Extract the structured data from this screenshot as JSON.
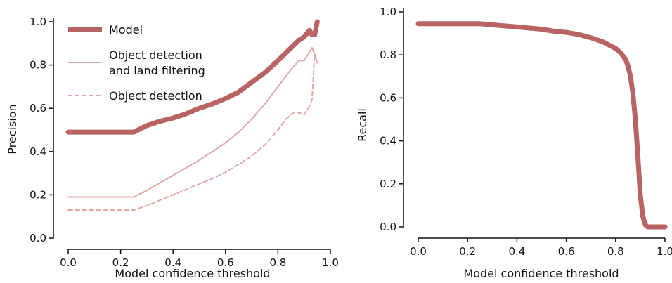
{
  "chart_data": [
    {
      "type": "line",
      "xlabel": "Model confidence threshold",
      "ylabel": "Precision",
      "xlim": [
        0,
        1
      ],
      "ylim": [
        0,
        1
      ],
      "xticks": [
        "0.0",
        "0.2",
        "0.4",
        "0.6",
        "0.8",
        "1.0"
      ],
      "yticks": [
        "0.0",
        "0.2",
        "0.4",
        "0.6",
        "0.8",
        "1.0"
      ],
      "legend_position": "top-left",
      "series": [
        {
          "name": "Model",
          "style": "thick-solid",
          "color": "#b86464",
          "x": [
            0.0,
            0.25,
            0.3,
            0.35,
            0.4,
            0.45,
            0.5,
            0.55,
            0.6,
            0.65,
            0.7,
            0.75,
            0.8,
            0.85,
            0.88,
            0.9,
            0.92,
            0.93,
            0.94,
            0.95
          ],
          "y": [
            0.49,
            0.49,
            0.52,
            0.54,
            0.555,
            0.575,
            0.6,
            0.62,
            0.645,
            0.675,
            0.72,
            0.765,
            0.82,
            0.88,
            0.915,
            0.93,
            0.96,
            0.94,
            0.94,
            1.0
          ]
        },
        {
          "name": "Object detection\nand land filtering",
          "style": "thin-solid",
          "color": "#e0a9a9",
          "x": [
            0.0,
            0.25,
            0.3,
            0.35,
            0.4,
            0.45,
            0.5,
            0.55,
            0.6,
            0.65,
            0.7,
            0.75,
            0.8,
            0.85,
            0.88,
            0.9,
            0.92,
            0.93,
            0.94,
            0.95
          ],
          "y": [
            0.19,
            0.19,
            0.22,
            0.255,
            0.29,
            0.325,
            0.36,
            0.4,
            0.44,
            0.49,
            0.55,
            0.62,
            0.7,
            0.78,
            0.82,
            0.82,
            0.86,
            0.88,
            0.85,
            0.81
          ]
        },
        {
          "name": "Object detection",
          "style": "dashed",
          "color": "#e0a9a9",
          "x": [
            0.0,
            0.25,
            0.3,
            0.35,
            0.4,
            0.45,
            0.5,
            0.55,
            0.6,
            0.65,
            0.7,
            0.75,
            0.8,
            0.83,
            0.86,
            0.88,
            0.9,
            0.92,
            0.93,
            0.94,
            0.95
          ],
          "y": [
            0.13,
            0.13,
            0.15,
            0.175,
            0.2,
            0.225,
            0.25,
            0.275,
            0.305,
            0.34,
            0.38,
            0.43,
            0.5,
            0.55,
            0.58,
            0.58,
            0.57,
            0.61,
            0.64,
            0.85,
            0.81
          ]
        }
      ]
    },
    {
      "type": "line",
      "xlabel": "Model confidence threshold",
      "ylabel": "Recall",
      "xlim": [
        0,
        1
      ],
      "ylim": [
        0,
        1
      ],
      "xticks": [
        "0.0",
        "0.2",
        "0.4",
        "0.6",
        "0.8",
        "1.0"
      ],
      "yticks": [
        "0.0",
        "0.2",
        "0.4",
        "0.6",
        "0.8",
        "1.0"
      ],
      "series": [
        {
          "name": "",
          "style": "thick-solid",
          "color": "#b86464",
          "x": [
            0.0,
            0.1,
            0.2,
            0.25,
            0.3,
            0.4,
            0.5,
            0.55,
            0.6,
            0.65,
            0.7,
            0.75,
            0.8,
            0.82,
            0.84,
            0.85,
            0.86,
            0.87,
            0.88,
            0.89,
            0.9,
            0.91,
            0.92,
            0.93,
            0.95,
            1.0
          ],
          "y": [
            0.945,
            0.945,
            0.945,
            0.945,
            0.94,
            0.93,
            0.92,
            0.91,
            0.905,
            0.895,
            0.88,
            0.86,
            0.83,
            0.81,
            0.78,
            0.75,
            0.7,
            0.62,
            0.5,
            0.33,
            0.15,
            0.05,
            0.01,
            0.0,
            0.0,
            0.0
          ]
        }
      ]
    }
  ]
}
